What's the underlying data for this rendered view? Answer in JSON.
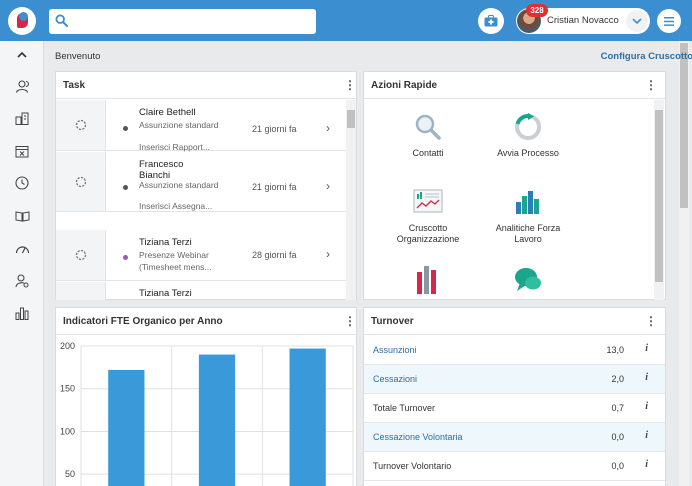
{
  "search": {
    "placeholder": ""
  },
  "user": {
    "name": "Cristian Novacco",
    "notifications": "328"
  },
  "header": {
    "welcome": "Benvenuto",
    "config_link": "Configura Cruscotto"
  },
  "task_panel": {
    "title": "Task",
    "rows": [
      {
        "name": "Claire Bethell",
        "type": "Assunzione standard",
        "detail": "Inserisci Rapport...",
        "time": "21 giorni fa",
        "dot_color": "#555555"
      },
      {
        "name": "Francesco Bianchi",
        "type": "Assunzione standard",
        "detail": "Inserisci Assegna...",
        "time": "21 giorni fa",
        "dot_color": "#555555"
      },
      {
        "name": "Tiziana Terzi",
        "type": "Presenze Webinar",
        "detail": "(Timesheet mens...",
        "time": "28 giorni fa",
        "dot_color": "#9b59b6"
      },
      {
        "name": "Tiziana Terzi"
      }
    ]
  },
  "quick_actions": {
    "title": "Azioni Rapide",
    "items": [
      {
        "label": "Contatti",
        "icon": "magnifier-icon"
      },
      {
        "label": "Avvia Processo",
        "icon": "refresh-icon"
      },
      {
        "label": "Cruscotto Organizzazione",
        "icon": "dashboard-icon"
      },
      {
        "label": "Analitiche Forza Lavoro",
        "icon": "bar-chart-icon"
      },
      {
        "label": "",
        "icon": "red-bar-chart-icon"
      },
      {
        "label": "",
        "icon": "chat-icon"
      }
    ]
  },
  "fte_panel": {
    "title": "Indicatori FTE Organico per Anno"
  },
  "chart_data": {
    "type": "bar",
    "categories": [
      "",
      "",
      ""
    ],
    "values": [
      172,
      190,
      197
    ],
    "ylim": [
      35,
      200
    ],
    "yticks": [
      50,
      100,
      150,
      200
    ],
    "title": "",
    "xlabel": "",
    "ylabel": "",
    "color": "#3a9ad9",
    "grid": true
  },
  "turnover": {
    "title": "Turnover",
    "rows": [
      {
        "label": "Assunzioni",
        "value": "13,0",
        "link": true
      },
      {
        "label": "Cessazioni",
        "value": "2,0",
        "link": true
      },
      {
        "label": "Totale Turnover",
        "value": "0,7",
        "link": false
      },
      {
        "label": "Cessazione Volontaria",
        "value": "0,0",
        "link": true
      },
      {
        "label": "Turnover Volontario",
        "value": "0,0",
        "link": false
      }
    ]
  }
}
